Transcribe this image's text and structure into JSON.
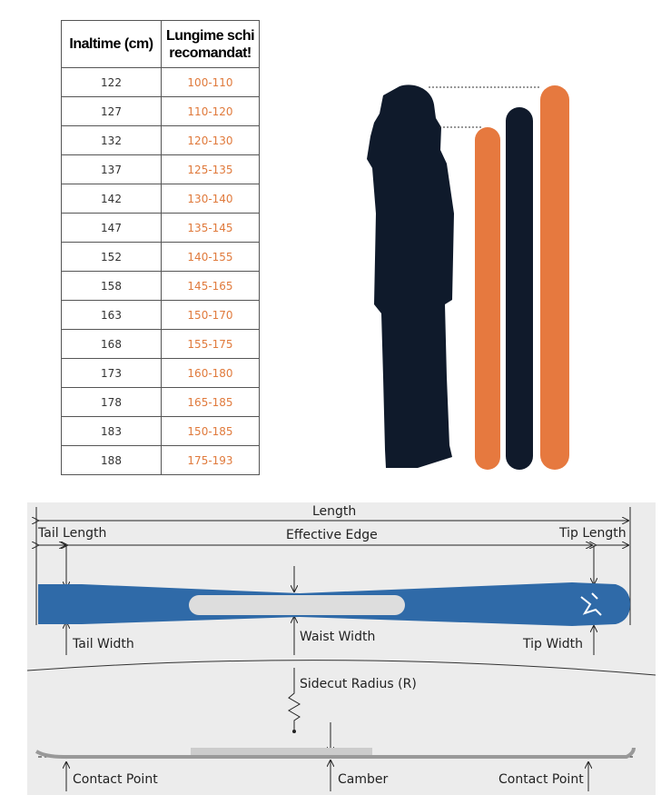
{
  "table": {
    "headers": [
      "Inaltime (cm)",
      "Lungime schi recomandat!"
    ],
    "rows": [
      [
        "122",
        "100-110"
      ],
      [
        "127",
        "110-120"
      ],
      [
        "132",
        "120-130"
      ],
      [
        "137",
        "125-135"
      ],
      [
        "142",
        "130-140"
      ],
      [
        "147",
        "135-145"
      ],
      [
        "152",
        "140-155"
      ],
      [
        "158",
        "145-165"
      ],
      [
        "163",
        "150-170"
      ],
      [
        "168",
        "155-175"
      ],
      [
        "173",
        "160-180"
      ],
      [
        "178",
        "165-185"
      ],
      [
        "183",
        "150-185"
      ],
      [
        "188",
        "175-193"
      ]
    ]
  },
  "colors": {
    "ski_orange": "#e6793f",
    "ski_dark": "#101a2b",
    "ski_blue": "#2f6aa8",
    "range_text": "#e07a3c"
  },
  "diagram": {
    "length": "Length",
    "tail_length": "Tail Length",
    "effective_edge": "Effective Edge",
    "tip_length": "Tip Length",
    "tail_width": "Tail Width",
    "waist_width": "Waist Width",
    "tip_width": "Tip Width",
    "sidecut_radius": "Sidecut Radius (R)",
    "contact_point_left": "Contact Point",
    "camber": "Camber",
    "contact_point_right": "Contact Point"
  }
}
